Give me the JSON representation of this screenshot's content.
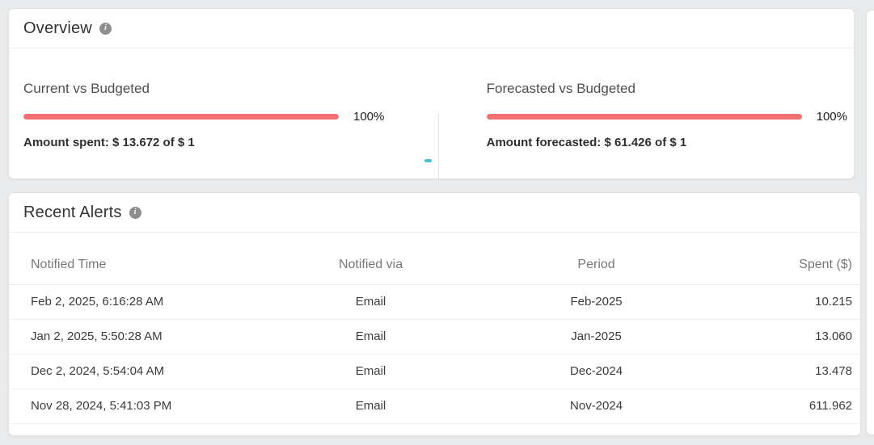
{
  "page": {
    "background": "#e9eaeb"
  },
  "icons": {
    "info_glyph": "i"
  },
  "colors": {
    "progress_bar": "#f06f71",
    "cyan_tick": "#3fc6d8",
    "info_icon_bg": "#8e8e8e"
  },
  "overview": {
    "title": "Overview",
    "bar_color": "#f06f71",
    "sections": [
      {
        "title": "Current vs Budgeted",
        "percent": 100,
        "percent_label": "100%",
        "detail": "Amount spent: $ 13.672 of $ 1"
      },
      {
        "title": "Forecasted vs Budgeted",
        "percent": 100,
        "percent_label": "100%",
        "detail": "Amount forecasted: $ 61.426 of $ 1"
      }
    ]
  },
  "recent_alerts": {
    "title": "Recent Alerts",
    "columns": [
      "Notified Time",
      "Notified via",
      "Period",
      "Spent ($)"
    ],
    "rows": [
      [
        "Feb 2, 2025, 6:16:28 AM",
        "Email",
        "Feb-2025",
        "10.215"
      ],
      [
        "Jan 2, 2025, 5:50:28 AM",
        "Email",
        "Jan-2025",
        "13.060"
      ],
      [
        "Dec 2, 2024, 5:54:04 AM",
        "Email",
        "Dec-2024",
        "13.478"
      ],
      [
        "Nov 28, 2024, 5:41:03 PM",
        "Email",
        "Nov-2024",
        "611.962"
      ]
    ]
  }
}
